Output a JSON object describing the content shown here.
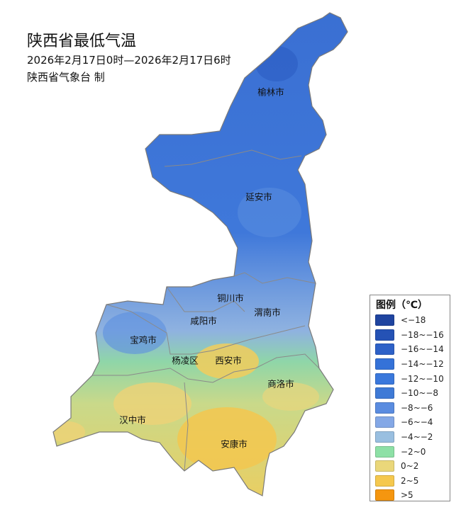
{
  "title": "陕西省最低气温",
  "period": "2026年2月17日0时—2026年2月17日6时",
  "producer": "陕西省气象台 制",
  "cities": [
    {
      "name": "榆林市"
    },
    {
      "name": "延安市"
    },
    {
      "name": "铜川市"
    },
    {
      "name": "渭南市"
    },
    {
      "name": "咸阳市"
    },
    {
      "name": "宝鸡市"
    },
    {
      "name": "杨凌区"
    },
    {
      "name": "西安市"
    },
    {
      "name": "商洛市"
    },
    {
      "name": "汉中市"
    },
    {
      "name": "安康市"
    }
  ],
  "legend": {
    "title": "图例（℃）",
    "items": [
      {
        "label": "<−18",
        "color": "#1f44a0"
      },
      {
        "label": "−18~−16",
        "color": "#2552b5"
      },
      {
        "label": "−16~−14",
        "color": "#2d61c8"
      },
      {
        "label": "−14~−12",
        "color": "#3572d8"
      },
      {
        "label": "−12~−10",
        "color": "#3a78dc"
      },
      {
        "label": "−10~−8",
        "color": "#3f7ad6"
      },
      {
        "label": "−8~−6",
        "color": "#5a8ce0"
      },
      {
        "label": "−6~−4",
        "color": "#84a8e6"
      },
      {
        "label": "−4~−2",
        "color": "#99bfe0"
      },
      {
        "label": "−2~0",
        "color": "#8de0a6"
      },
      {
        "label": "0~2",
        "color": "#ead77a"
      },
      {
        "label": "2~5",
        "color": "#f5c84e"
      },
      {
        "label": ">5",
        "color": "#f5960f"
      }
    ]
  }
}
